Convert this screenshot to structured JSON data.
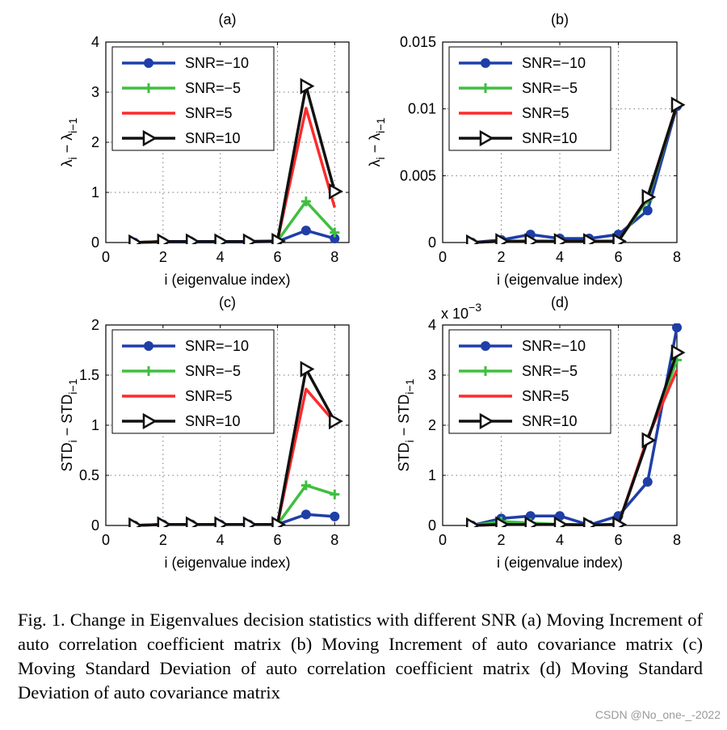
{
  "chart_data": [
    {
      "panel": "a",
      "type": "line",
      "title": "(a)",
      "xlabel": "i (eigenvalue index)",
      "ylabel": "λ_i − λ_i−1",
      "xlim": [
        0,
        8.5
      ],
      "ylim": [
        0,
        4
      ],
      "xticks": [
        "0",
        "2",
        "4",
        "6",
        "8"
      ],
      "yticks": [
        "0",
        "1",
        "2",
        "3",
        "4"
      ],
      "grid": true,
      "legend_position": "top-left",
      "x": [
        1,
        2,
        3,
        4,
        5,
        6,
        7,
        8
      ],
      "series": [
        {
          "name": "SNR=−10",
          "values": [
            0,
            0.01,
            0.01,
            0.01,
            0.01,
            0.02,
            0.24,
            0.08
          ]
        },
        {
          "name": "SNR=−5",
          "values": [
            0,
            0.02,
            0.02,
            0.02,
            0.02,
            0.03,
            0.82,
            0.2
          ]
        },
        {
          "name": "SNR=5",
          "values": [
            0,
            0.02,
            0.02,
            0.02,
            0.02,
            0.03,
            2.68,
            0.7
          ]
        },
        {
          "name": "SNR=10",
          "values": [
            0,
            0.02,
            0.02,
            0.02,
            0.02,
            0.03,
            3.12,
            1.02
          ]
        }
      ]
    },
    {
      "panel": "b",
      "type": "line",
      "title": "(b)",
      "xlabel": "i (eigenvalue index)",
      "ylabel": "λ_i − λ_i−1",
      "xlim": [
        0,
        8
      ],
      "ylim": [
        0,
        0.015
      ],
      "xticks": [
        "0",
        "2",
        "4",
        "6",
        "8"
      ],
      "yticks": [
        "0",
        "0.005",
        "0.01",
        "0.015"
      ],
      "grid": true,
      "legend_position": "top-left",
      "x": [
        1,
        2,
        3,
        4,
        5,
        6,
        7,
        8
      ],
      "series": [
        {
          "name": "SNR=−10",
          "values": [
            0,
            0.0002,
            0.0006,
            0.0003,
            0.0003,
            0.0006,
            0.0024,
            0.0102
          ]
        },
        {
          "name": "SNR=−5",
          "values": [
            0,
            0.0001,
            0.0001,
            0.0001,
            0.0001,
            0.0001,
            0.0032,
            0.0103
          ]
        },
        {
          "name": "SNR=5",
          "values": [
            0,
            0.0001,
            0.0001,
            0.0001,
            0.0001,
            0.0001,
            0.0034,
            0.0103
          ]
        },
        {
          "name": "SNR=10",
          "values": [
            0,
            0.0001,
            0.0001,
            0.0001,
            0.0001,
            0.0001,
            0.0034,
            0.0103
          ]
        }
      ]
    },
    {
      "panel": "c",
      "type": "line",
      "title": "(c)",
      "xlabel": "i (eigenvalue index)",
      "ylabel": "STD_i − STD_i−1",
      "xlim": [
        0,
        8.5
      ],
      "ylim": [
        0,
        2
      ],
      "xticks": [
        "0",
        "2",
        "4",
        "6",
        "8"
      ],
      "yticks": [
        "0",
        "0.5",
        "1",
        "1.5",
        "2"
      ],
      "grid": true,
      "legend_position": "top-left",
      "x": [
        1,
        2,
        3,
        4,
        5,
        6,
        7,
        8
      ],
      "series": [
        {
          "name": "SNR=−10",
          "values": [
            0,
            0.01,
            0.01,
            0.01,
            0.01,
            0.01,
            0.11,
            0.09
          ]
        },
        {
          "name": "SNR=−5",
          "values": [
            0,
            0.01,
            0.01,
            0.01,
            0.01,
            0.01,
            0.4,
            0.31
          ]
        },
        {
          "name": "SNR=5",
          "values": [
            0,
            0.01,
            0.01,
            0.01,
            0.01,
            0.01,
            1.36,
            1.03
          ]
        },
        {
          "name": "SNR=10",
          "values": [
            0,
            0.01,
            0.01,
            0.01,
            0.01,
            0.01,
            1.56,
            1.04
          ]
        }
      ]
    },
    {
      "panel": "d",
      "type": "line",
      "title": "(d)",
      "xlabel": "i (eigenvalue index)",
      "ylabel": "STD_i − STD_i−1",
      "xlim": [
        0,
        8
      ],
      "ylim": [
        0,
        4
      ],
      "xticks": [
        "0",
        "2",
        "4",
        "6",
        "8"
      ],
      "yticks": [
        "0",
        "1",
        "2",
        "3",
        "4"
      ],
      "y_multiplier": "x 10",
      "y_exponent": "−3",
      "grid": true,
      "legend_position": "top-left",
      "x": [
        1,
        2,
        3,
        4,
        5,
        6,
        7,
        8
      ],
      "series": [
        {
          "name": "SNR=−10",
          "values": [
            0,
            0.14,
            0.19,
            0.19,
            0.01,
            0.19,
            0.87,
            3.95
          ]
        },
        {
          "name": "SNR=−5",
          "values": [
            0,
            0.08,
            0.05,
            0.02,
            0.01,
            0.02,
            1.72,
            3.3
          ]
        },
        {
          "name": "SNR=5",
          "values": [
            0,
            0.02,
            0.02,
            0.02,
            0.01,
            0.02,
            1.75,
            3.1
          ]
        },
        {
          "name": "SNR=10",
          "values": [
            0,
            0.02,
            0.02,
            0.02,
            0.01,
            0.02,
            1.7,
            3.45
          ]
        }
      ]
    }
  ],
  "styles": {
    "series_colors": [
      "#1f3ea8",
      "#3fbf3f",
      "#ff2a2a",
      "#111111"
    ],
    "series_markers": [
      "circle",
      "plus",
      "none",
      "triangle-right"
    ]
  },
  "caption": "Fig. 1.   Change in Eigenvalues decision statistics with different SNR (a) Moving Increment of auto correlation coefficient matrix (b) Moving Increment of auto covariance matrix (c) Moving Standard Deviation of auto correlation coefficient matrix (d) Moving Standard Deviation of auto covariance matrix",
  "watermark": "CSDN @No_one-_-2022"
}
